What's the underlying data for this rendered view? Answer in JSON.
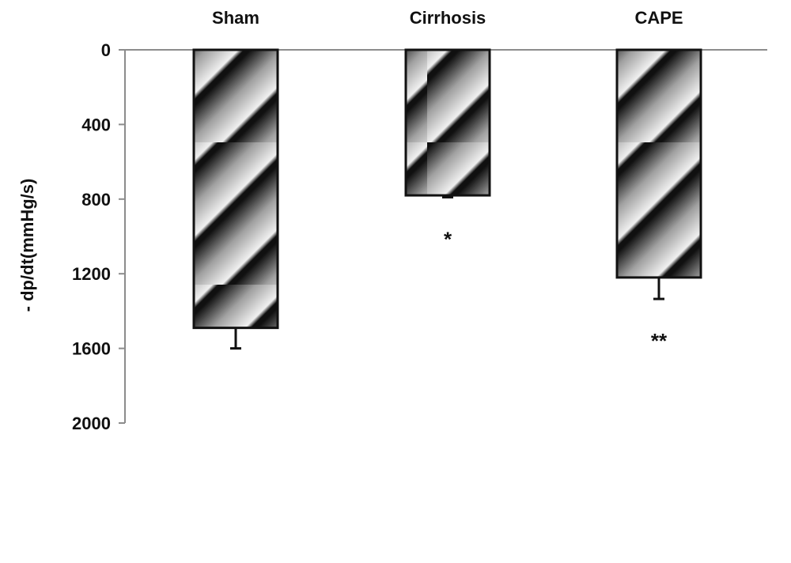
{
  "chart_data": {
    "type": "bar",
    "orientation": "vertical",
    "y_inverted": true,
    "categories": [
      "Sham",
      "Cirrhosis",
      "CAPE"
    ],
    "values": [
      1490,
      780,
      1220
    ],
    "error": [
      110,
      10,
      115
    ],
    "annotations": [
      "",
      "*",
      "**"
    ],
    "ylabel": "- dp/dt(mmHg/s)",
    "xlabel": "",
    "title": "",
    "ylim": [
      0,
      2000
    ],
    "yticks": [
      0,
      400,
      800,
      1200,
      1600,
      2000
    ],
    "ytick_labels": [
      "0",
      "400",
      "800",
      "1200",
      "1600",
      "2000"
    ],
    "category_axis_position": "top",
    "grid": false,
    "legend": "none",
    "bar_fill": "diagonal gradient stripes",
    "colors": {
      "dark": "#1a1a1a",
      "mid": "#9a9a9a",
      "light": "#f2f2f2",
      "axis": "#8c8c8c",
      "bar_outline": "#111111"
    }
  }
}
